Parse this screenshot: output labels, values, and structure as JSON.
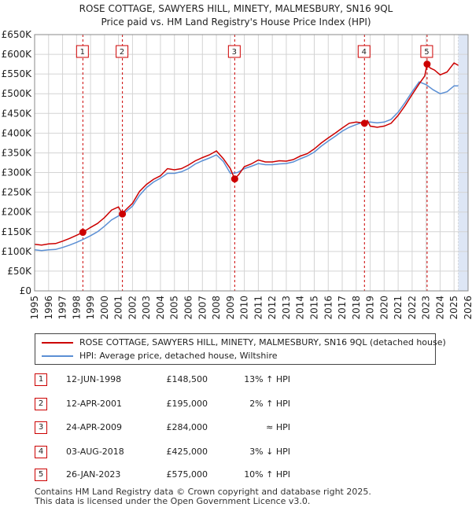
{
  "title_line1": "ROSE COTTAGE, SAWYERS HILL, MINETY, MALMESBURY, SN16 9QL",
  "title_line2": "Price paid vs. HM Land Registry's House Price Index (HPI)",
  "colors": {
    "property": "#cc0000",
    "hpi": "#5b8fd4",
    "shade": "#dde6f5",
    "grid": "#d4d4d4",
    "vline": "#cc0000"
  },
  "chart_data": {
    "type": "line",
    "ylim": [
      0,
      650000
    ],
    "xlim": [
      1995,
      2026
    ],
    "y_ticks": [
      {
        "value": 0,
        "label": "£0"
      },
      {
        "value": 50000,
        "label": "£50K"
      },
      {
        "value": 100000,
        "label": "£100K"
      },
      {
        "value": 150000,
        "label": "£150K"
      },
      {
        "value": 200000,
        "label": "£200K"
      },
      {
        "value": 250000,
        "label": "£250K"
      },
      {
        "value": 300000,
        "label": "£300K"
      },
      {
        "value": 350000,
        "label": "£350K"
      },
      {
        "value": 400000,
        "label": "£400K"
      },
      {
        "value": 450000,
        "label": "£450K"
      },
      {
        "value": 500000,
        "label": "£500K"
      },
      {
        "value": 550000,
        "label": "£550K"
      },
      {
        "value": 600000,
        "label": "£600K"
      },
      {
        "value": 650000,
        "label": "£650K"
      }
    ],
    "x_ticks": [
      "1995",
      "1996",
      "1997",
      "1998",
      "1999",
      "2000",
      "2001",
      "2002",
      "2003",
      "2004",
      "2005",
      "2006",
      "2007",
      "2008",
      "2009",
      "2010",
      "2011",
      "2012",
      "2013",
      "2014",
      "2015",
      "2016",
      "2017",
      "2018",
      "2019",
      "2020",
      "2021",
      "2022",
      "2023",
      "2024",
      "2025",
      "2026"
    ],
    "series": [
      {
        "name": "ROSE COTTAGE, SAWYERS HILL, MINETY, MALMESBURY, SN16 9QL (detached house)",
        "color": "#cc0000",
        "x": [
          1995.0,
          1995.5,
          1996.0,
          1996.5,
          1997.0,
          1997.5,
          1998.0,
          1998.45,
          1999.0,
          1999.5,
          2000.0,
          2000.5,
          2001.0,
          2001.28,
          2001.5,
          2002.0,
          2002.5,
          2003.0,
          2003.5,
          2004.0,
          2004.5,
          2005.0,
          2005.5,
          2006.0,
          2006.5,
          2007.0,
          2007.5,
          2008.0,
          2008.5,
          2009.0,
          2009.31,
          2009.6,
          2010.0,
          2010.5,
          2011.0,
          2011.5,
          2012.0,
          2012.5,
          2013.0,
          2013.5,
          2014.0,
          2014.5,
          2015.0,
          2015.5,
          2016.0,
          2016.5,
          2017.0,
          2017.5,
          2018.0,
          2018.59,
          2018.8,
          2019.0,
          2019.5,
          2020.0,
          2020.5,
          2021.0,
          2021.5,
          2022.0,
          2022.5,
          2022.9,
          2023.07,
          2023.3,
          2023.6,
          2024.0,
          2024.5,
          2025.0,
          2025.3
        ],
        "values": [
          118000,
          116000,
          119000,
          120000,
          126000,
          133000,
          141000,
          148500,
          161000,
          171000,
          186000,
          205000,
          213000,
          195000,
          205000,
          222000,
          252000,
          270000,
          283000,
          292000,
          310000,
          307000,
          310000,
          319000,
          330000,
          338000,
          345000,
          355000,
          335000,
          310000,
          284000,
          295000,
          315000,
          322000,
          332000,
          327000,
          327000,
          330000,
          329000,
          333000,
          342000,
          348000,
          360000,
          375000,
          388000,
          400000,
          413000,
          425000,
          428000,
          425000,
          432000,
          418000,
          415000,
          418000,
          425000,
          445000,
          470000,
          498000,
          525000,
          545000,
          575000,
          565000,
          560000,
          548000,
          555000,
          578000,
          572000
        ]
      },
      {
        "name": "HPI: Average price, detached house, Wiltshire",
        "color": "#5b8fd4",
        "x": [
          1995.0,
          1995.5,
          1996.0,
          1996.5,
          1997.0,
          1997.5,
          1998.0,
          1998.5,
          1999.0,
          1999.5,
          2000.0,
          2000.5,
          2001.0,
          2001.5,
          2002.0,
          2002.5,
          2003.0,
          2003.5,
          2004.0,
          2004.5,
          2005.0,
          2005.5,
          2006.0,
          2006.5,
          2007.0,
          2007.5,
          2008.0,
          2008.5,
          2009.0,
          2009.5,
          2010.0,
          2010.5,
          2011.0,
          2011.5,
          2012.0,
          2012.5,
          2013.0,
          2013.5,
          2014.0,
          2014.5,
          2015.0,
          2015.5,
          2016.0,
          2016.5,
          2017.0,
          2017.5,
          2018.0,
          2018.5,
          2019.0,
          2019.5,
          2020.0,
          2020.5,
          2021.0,
          2021.5,
          2022.0,
          2022.5,
          2023.0,
          2023.5,
          2024.0,
          2024.5,
          2025.0,
          2025.3
        ],
        "values": [
          104000,
          102000,
          104000,
          105000,
          110000,
          116000,
          123000,
          131000,
          140000,
          150000,
          164000,
          180000,
          190000,
          200000,
          215000,
          242000,
          262000,
          276000,
          286000,
          298000,
          298000,
          302000,
          310000,
          322000,
          330000,
          337000,
          345000,
          328000,
          298000,
          300000,
          310000,
          316000,
          323000,
          320000,
          320000,
          322000,
          323000,
          327000,
          335000,
          342000,
          352000,
          367000,
          380000,
          392000,
          405000,
          415000,
          422000,
          428000,
          428000,
          426000,
          428000,
          435000,
          453000,
          478000,
          505000,
          530000,
          523000,
          510000,
          500000,
          505000,
          520000,
          520000
        ]
      }
    ],
    "sales": [
      {
        "n": "1",
        "x": 1998.45,
        "value": 148500
      },
      {
        "n": "2",
        "x": 2001.28,
        "value": 195000
      },
      {
        "n": "3",
        "x": 2009.31,
        "value": 284000
      },
      {
        "n": "4",
        "x": 2018.59,
        "value": 425000
      },
      {
        "n": "5",
        "x": 2023.07,
        "value": 575000
      }
    ]
  },
  "legend": {
    "property_label": "ROSE COTTAGE, SAWYERS HILL, MINETY, MALMESBURY, SN16 9QL (detached house)",
    "hpi_label": "HPI: Average price, detached house, Wiltshire"
  },
  "sales_table": [
    {
      "n": "1",
      "date": "12-JUN-1998",
      "price": "£148,500",
      "hpi": "13% ↑ HPI"
    },
    {
      "n": "2",
      "date": "12-APR-2001",
      "price": "£195,000",
      "hpi": "2% ↑ HPI"
    },
    {
      "n": "3",
      "date": "24-APR-2009",
      "price": "£284,000",
      "hpi": "≈ HPI"
    },
    {
      "n": "4",
      "date": "03-AUG-2018",
      "price": "£425,000",
      "hpi": "3% ↓ HPI"
    },
    {
      "n": "5",
      "date": "26-JAN-2023",
      "price": "£575,000",
      "hpi": "10% ↑ HPI"
    }
  ],
  "footer_line1": "Contains HM Land Registry data © Crown copyright and database right 2025.",
  "footer_line2": "This data is licensed under the Open Government Licence v3.0."
}
